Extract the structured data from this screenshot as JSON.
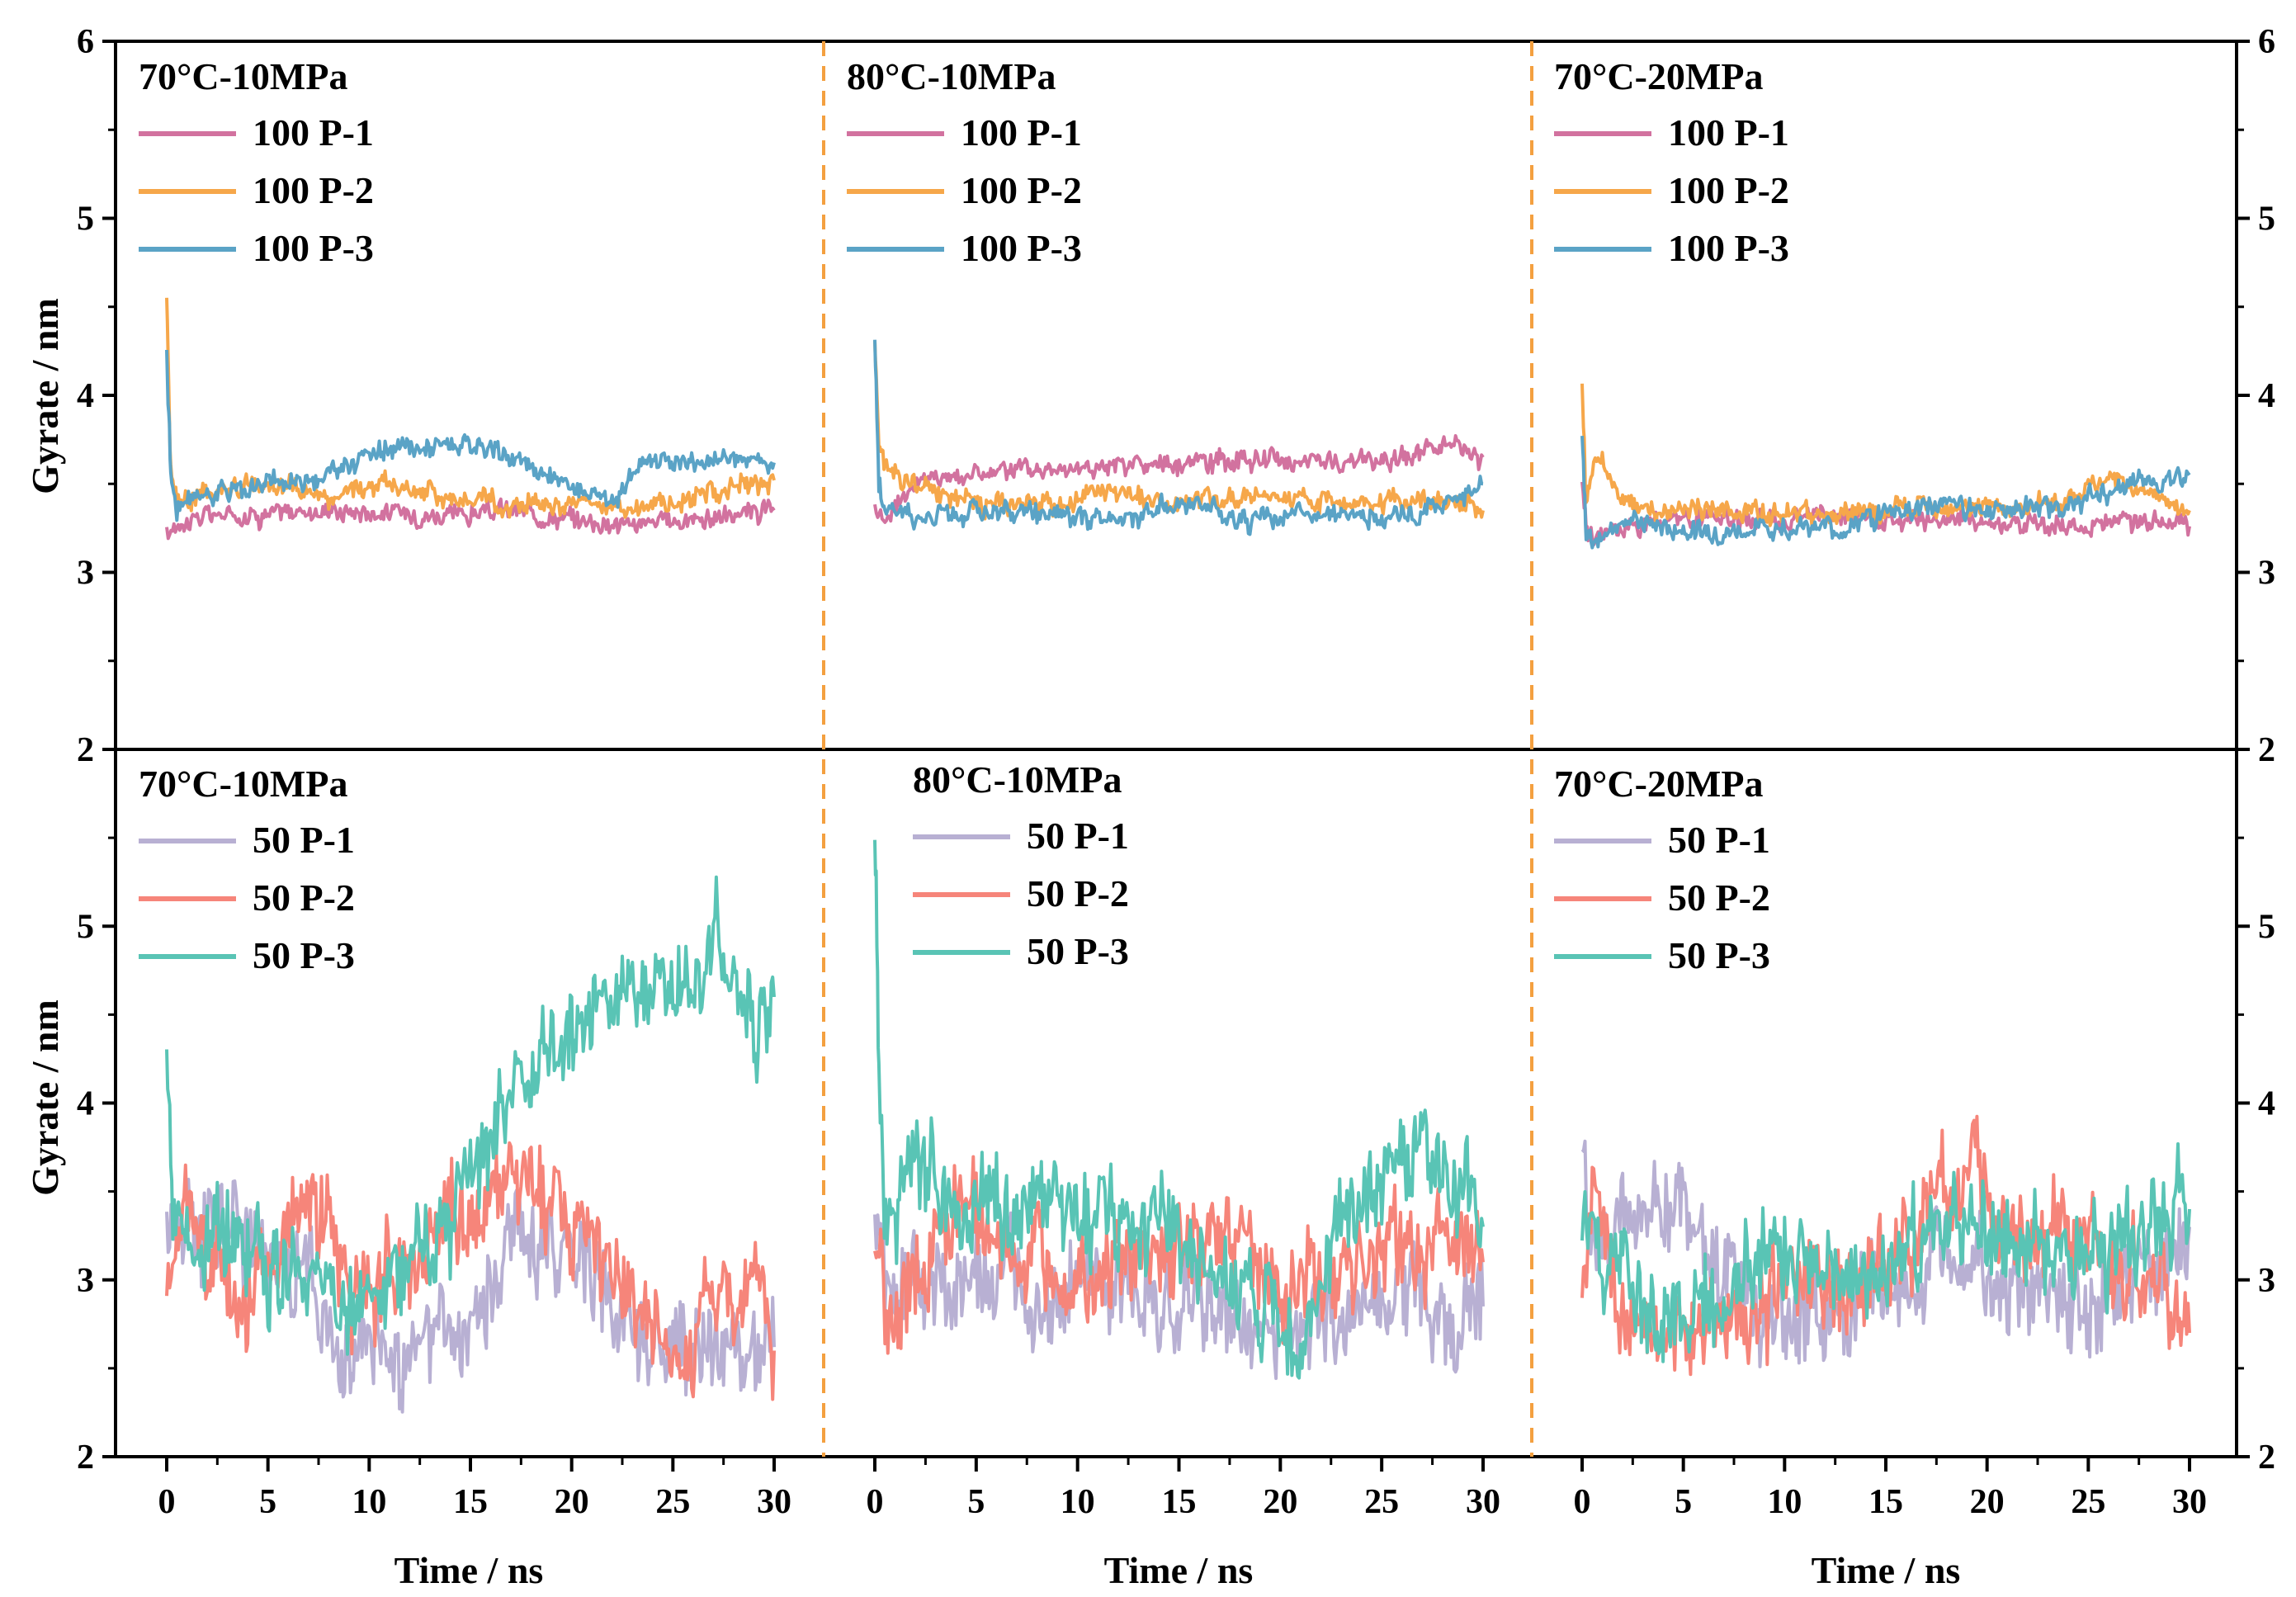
{
  "chart_data": {
    "type": "line",
    "ylabel": "Gyrate / nm",
    "xlabel": "Time / ns",
    "ylim_top": [
      2,
      6
    ],
    "ylim_bottom": [
      2,
      6
    ],
    "y_ticks": [
      "2",
      "3",
      "4",
      "5",
      "6"
    ],
    "x_ticks": [
      "0",
      "5",
      "10",
      "15",
      "20",
      "25",
      "30"
    ],
    "xlim": [
      0,
      30
    ],
    "grid": false,
    "colors": {
      "100 P-1": "#d2729f",
      "100 P-2": "#f6a74a",
      "100 P-3": "#5aa3c6",
      "50 P-1": "#b8b0d3",
      "50 P-2": "#f6857a",
      "50 P-3": "#59c4b5",
      "separator": "#f4a040"
    },
    "panels": [
      {
        "row": "top",
        "col": 0,
        "title": "70°C-10MPa",
        "series": [
          {
            "name": "100 P-1",
            "x": [
              0,
              0.5,
              2,
              5,
              8,
              11,
              14,
              17,
              20,
              23,
              26,
              28,
              30
            ],
            "y": [
              3.2,
              3.28,
              3.32,
              3.33,
              3.35,
              3.34,
              3.32,
              3.35,
              3.3,
              3.27,
              3.3,
              3.32,
              3.35
            ]
          },
          {
            "name": "100 P-2",
            "x": [
              0,
              0.2,
              0.5,
              2,
              5,
              8,
              11,
              14,
              17,
              20,
              22,
              25,
              28,
              30
            ],
            "y": [
              4.55,
              3.6,
              3.4,
              3.45,
              3.5,
              3.42,
              3.5,
              3.42,
              3.38,
              3.4,
              3.35,
              3.4,
              3.48,
              3.52
            ]
          },
          {
            "name": "100 P-3",
            "x": [
              0,
              0.2,
              0.5,
              2,
              5,
              8,
              10,
              14,
              17,
              20,
              22,
              24,
              26,
              28,
              30
            ],
            "y": [
              4.25,
              3.55,
              3.35,
              3.45,
              3.5,
              3.55,
              3.68,
              3.72,
              3.65,
              3.48,
              3.42,
              3.65,
              3.62,
              3.65,
              3.62
            ]
          }
        ]
      },
      {
        "row": "top",
        "col": 1,
        "title": "80°C-10MPa",
        "series": [
          {
            "name": "100 P-1",
            "x": [
              0,
              0.5,
              2,
              5,
              8,
              11,
              14,
              17,
              20,
              23,
              26,
              28,
              30
            ],
            "y": [
              3.38,
              3.3,
              3.52,
              3.56,
              3.58,
              3.6,
              3.6,
              3.62,
              3.64,
              3.62,
              3.65,
              3.72,
              3.65
            ]
          },
          {
            "name": "100 P-2",
            "x": [
              0,
              0.2,
              0.5,
              2,
              5,
              8,
              11,
              14,
              17,
              20,
              23,
              26,
              28,
              30
            ],
            "y": [
              4.3,
              3.75,
              3.6,
              3.5,
              3.4,
              3.38,
              3.45,
              3.4,
              3.42,
              3.42,
              3.38,
              3.4,
              3.42,
              3.35
            ]
          },
          {
            "name": "100 P-3",
            "x": [
              0,
              0.2,
              0.5,
              2,
              5,
              8,
              11,
              14,
              16,
              18,
              20,
              23,
              26,
              28,
              30
            ],
            "y": [
              4.3,
              3.5,
              3.35,
              3.32,
              3.35,
              3.32,
              3.3,
              3.35,
              3.38,
              3.3,
              3.32,
              3.35,
              3.3,
              3.38,
              3.5
            ]
          }
        ]
      },
      {
        "row": "top",
        "col": 2,
        "title": "70°C-20MPa",
        "series": [
          {
            "name": "100 P-1",
            "x": [
              0,
              0.3,
              1,
              3,
              6,
              9,
              12,
              15,
              18,
              21,
              24,
              27,
              30
            ],
            "y": [
              3.5,
              3.2,
              3.22,
              3.28,
              3.3,
              3.3,
              3.32,
              3.3,
              3.3,
              3.28,
              3.26,
              3.3,
              3.26
            ]
          },
          {
            "name": "100 P-2",
            "x": [
              0,
              0.2,
              0.5,
              1,
              2,
              3,
              6,
              9,
              12,
              15,
              18,
              21,
              24,
              26,
              28,
              30
            ],
            "y": [
              4.05,
              3.35,
              3.6,
              3.62,
              3.4,
              3.35,
              3.35,
              3.33,
              3.32,
              3.35,
              3.38,
              3.35,
              3.4,
              3.55,
              3.45,
              3.35
            ]
          },
          {
            "name": "100 P-3",
            "x": [
              0,
              0.2,
              0.5,
              1,
              2,
              4,
              7,
              10,
              13,
              15,
              18,
              21,
              24,
              26,
              28,
              30
            ],
            "y": [
              3.75,
              3.2,
              3.18,
              3.2,
              3.3,
              3.25,
              3.22,
              3.26,
              3.25,
              3.35,
              3.38,
              3.35,
              3.38,
              3.45,
              3.52,
              3.55
            ]
          }
        ]
      },
      {
        "row": "bottom",
        "col": 0,
        "title": "70°C-10MPa",
        "series": [
          {
            "name": "50 P-1",
            "x": [
              0,
              1,
              3,
              5,
              7,
              8,
              9,
              11,
              13,
              15,
              17,
              19,
              21,
              22,
              23,
              25,
              27,
              29,
              30
            ],
            "y": [
              3.3,
              3.35,
              3.4,
              3.1,
              3.05,
              2.6,
              2.55,
              2.58,
              2.62,
              2.7,
              3.2,
              3.25,
              3.15,
              2.9,
              2.7,
              2.55,
              2.62,
              2.6,
              2.62
            ]
          },
          {
            "name": "50 P-2",
            "x": [
              0,
              1,
              2,
              4,
              6,
              8,
              9,
              10,
              12,
              14,
              16,
              18,
              19,
              20,
              21,
              22,
              24,
              25,
              26,
              27,
              28,
              29,
              30
            ],
            "y": [
              2.8,
              3.5,
              3.1,
              2.9,
              3.3,
              3.4,
              3.0,
              2.85,
              3.05,
              3.35,
              3.45,
              3.55,
              3.4,
              3.3,
              3.35,
              2.9,
              2.7,
              2.55,
              2.6,
              3.05,
              2.7,
              3.2,
              2.6
            ]
          },
          {
            "name": "50 P-3",
            "x": [
              0,
              0.3,
              1,
              3,
              5,
              7,
              9,
              10,
              12,
              14,
              16,
              18,
              20,
              22,
              24,
              26,
              27,
              28,
              29,
              30
            ],
            "y": [
              4.45,
              3.3,
              3.2,
              3.25,
              3.1,
              3.0,
              2.8,
              2.9,
              3.1,
              3.3,
              3.8,
              4.2,
              4.4,
              4.6,
              4.7,
              4.6,
              4.9,
              4.7,
              4.4,
              4.6
            ]
          }
        ]
      },
      {
        "row": "bottom",
        "col": 1,
        "title": "80°C-10MPa",
        "series": [
          {
            "name": "50 P-1",
            "x": [
              0,
              0.5,
              2,
              4,
              6,
              8,
              10,
              12,
              14,
              16,
              18,
              20,
              22,
              24,
              26,
              28,
              30
            ],
            "y": [
              3.25,
              3.05,
              3.0,
              2.95,
              3.0,
              2.95,
              3.0,
              2.85,
              2.95,
              2.85,
              2.75,
              2.7,
              2.8,
              2.85,
              3.0,
              2.75,
              2.85
            ]
          },
          {
            "name": "50 P-2",
            "x": [
              0,
              0.5,
              1,
              2,
              4,
              6,
              8,
              10,
              12,
              14,
              16,
              18,
              20,
              21,
              22,
              24,
              26,
              28,
              30
            ],
            "y": [
              3.3,
              2.8,
              2.75,
              3.0,
              3.45,
              3.25,
              3.1,
              3.0,
              3.1,
              3.1,
              3.35,
              3.2,
              2.95,
              2.9,
              3.05,
              3.2,
              3.2,
              3.15,
              3.1
            ]
          },
          {
            "name": "50 P-3",
            "x": [
              0,
              0.2,
              0.6,
              1,
              2,
              4,
              6,
              8,
              10,
              12,
              14,
              16,
              18,
              20,
              21,
              22,
              23,
              25,
              27,
              29,
              30
            ],
            "y": [
              5.6,
              4.2,
              3.3,
              3.5,
              3.6,
              3.35,
              3.4,
              3.45,
              3.35,
              3.35,
              3.3,
              3.05,
              3.0,
              2.7,
              2.6,
              3.0,
              3.3,
              3.65,
              3.7,
              3.5,
              3.3
            ]
          }
        ]
      },
      {
        "row": "bottom",
        "col": 2,
        "title": "70°C-20MPa",
        "series": [
          {
            "name": "50 P-1",
            "x": [
              0,
              0.5,
              2,
              4,
              6,
              7,
              9,
              11,
              13,
              15,
              17,
              19,
              21,
              23,
              25,
              27,
              29,
              30
            ],
            "y": [
              3.85,
              3.2,
              3.4,
              3.45,
              3.35,
              3.0,
              2.8,
              2.75,
              2.85,
              2.95,
              3.05,
              3.2,
              2.95,
              2.9,
              2.9,
              3.0,
              3.1,
              3.3
            ]
          },
          {
            "name": "50 P-2",
            "x": [
              0,
              0.5,
              1,
              2,
              3,
              5,
              7,
              9,
              11,
              13,
              15,
              17,
              18,
              20,
              22,
              24,
              26,
              28,
              29,
              30
            ],
            "y": [
              3.0,
              3.5,
              3.3,
              2.9,
              2.6,
              2.7,
              2.75,
              2.85,
              3.0,
              3.0,
              3.05,
              3.35,
              3.55,
              3.45,
              3.3,
              3.2,
              3.1,
              3.05,
              2.8,
              2.7
            ]
          },
          {
            "name": "50 P-3",
            "x": [
              0,
              0.5,
              1,
              2,
              3,
              5,
              7,
              9,
              11,
              13,
              15,
              17,
              19,
              21,
              23,
              25,
              27,
              29,
              30
            ],
            "y": [
              3.3,
              3.2,
              3.0,
              2.95,
              2.75,
              2.75,
              2.9,
              3.1,
              3.2,
              3.1,
              3.0,
              3.25,
              3.3,
              3.25,
              3.1,
              3.15,
              3.25,
              3.3,
              3.4
            ]
          }
        ]
      }
    ]
  }
}
